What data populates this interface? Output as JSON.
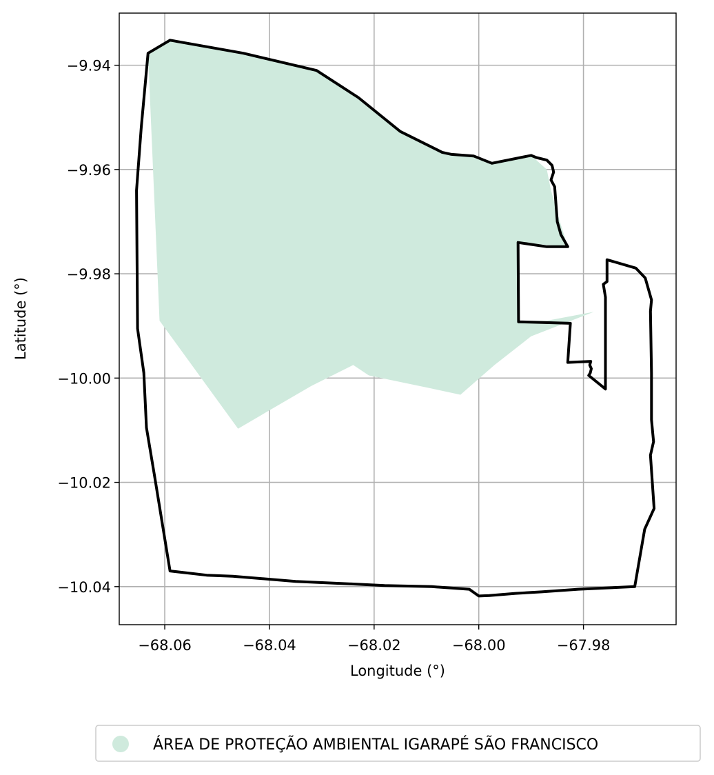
{
  "chart_data": {
    "type": "map",
    "xlabel": "Longitude (°)",
    "ylabel": "Latitude (°)",
    "xlim": [
      -68.0687,
      -67.9623
    ],
    "ylim": [
      -10.0473,
      -9.93
    ],
    "grid": true,
    "x_ticks": [
      {
        "value": -68.06,
        "label": "−68.06"
      },
      {
        "value": -68.04,
        "label": "−68.04"
      },
      {
        "value": -68.02,
        "label": "−68.02"
      },
      {
        "value": -68.0,
        "label": "−68.00"
      },
      {
        "value": -67.98,
        "label": "−67.98"
      }
    ],
    "y_ticks": [
      {
        "value": -9.94,
        "label": "−9.94"
      },
      {
        "value": -9.96,
        "label": "−9.96"
      },
      {
        "value": -9.98,
        "label": "−9.98"
      },
      {
        "value": -10.0,
        "label": "−10.00"
      },
      {
        "value": -10.02,
        "label": "−10.02"
      },
      {
        "value": -10.04,
        "label": "−10.04"
      }
    ],
    "legend": {
      "placement": "bottom-center",
      "entries": [
        {
          "label": "ÁREA DE PROTEÇÃO AMBIENTAL IGARAPÉ SÃO FRANCISCO",
          "color": "#cfeadd"
        }
      ]
    },
    "protected_area": {
      "color": "#cfeadd",
      "coordinates": [
        [
          -68.0632,
          -9.9377
        ],
        [
          -68.059,
          -9.9352
        ],
        [
          -68.045,
          -9.9377
        ],
        [
          -68.031,
          -9.941
        ],
        [
          -68.023,
          -9.9462
        ],
        [
          -68.015,
          -9.9527
        ],
        [
          -68.007,
          -9.9567
        ],
        [
          -68.0052,
          -9.9571
        ],
        [
          -68.001,
          -9.9574
        ],
        [
          -67.9975,
          -9.9588
        ],
        [
          -67.99,
          -9.9573
        ],
        [
          -67.987,
          -9.96
        ],
        [
          -67.9862,
          -9.964
        ],
        [
          -67.9845,
          -9.97
        ],
        [
          -67.983,
          -9.9748
        ],
        [
          -67.9925,
          -9.974
        ],
        [
          -67.9925,
          -9.989
        ],
        [
          -67.987,
          -9.989
        ],
        [
          -67.978,
          -9.9873
        ],
        [
          -67.99,
          -9.992
        ],
        [
          -67.997,
          -9.9975
        ],
        [
          -68.0035,
          -10.0032
        ],
        [
          -68.009,
          -10.002
        ],
        [
          -68.021,
          -9.9995
        ],
        [
          -68.024,
          -9.9975
        ],
        [
          -68.032,
          -10.0015
        ],
        [
          -68.046,
          -10.0097
        ],
        [
          -68.061,
          -9.989
        ],
        [
          -68.0632,
          -9.9377
        ]
      ]
    },
    "boundary": {
      "color": "#000000",
      "coordinates": [
        [
          -68.0632,
          -9.9377
        ],
        [
          -68.059,
          -9.9352
        ],
        [
          -68.045,
          -9.9377
        ],
        [
          -68.031,
          -9.941
        ],
        [
          -68.023,
          -9.9462
        ],
        [
          -68.015,
          -9.9527
        ],
        [
          -68.007,
          -9.9567
        ],
        [
          -68.0052,
          -9.9571
        ],
        [
          -68.001,
          -9.9574
        ],
        [
          -67.9975,
          -9.9588
        ],
        [
          -67.99,
          -9.9573
        ],
        [
          -67.989,
          -9.9577
        ],
        [
          -67.987,
          -9.9582
        ],
        [
          -67.986,
          -9.9592
        ],
        [
          -67.9857,
          -9.9605
        ],
        [
          -67.9862,
          -9.962
        ],
        [
          -67.9855,
          -9.9633
        ],
        [
          -67.985,
          -9.97
        ],
        [
          -67.9843,
          -9.9725
        ],
        [
          -67.983,
          -9.9748
        ],
        [
          -67.987,
          -9.9748
        ],
        [
          -67.9925,
          -9.974
        ],
        [
          -67.9924,
          -9.9892
        ],
        [
          -67.9825,
          -9.9895
        ],
        [
          -67.983,
          -9.997
        ],
        [
          -67.9786,
          -9.9968
        ],
        [
          -67.9788,
          -9.9975
        ],
        [
          -67.9785,
          -9.9982
        ],
        [
          -67.9787,
          -9.999
        ],
        [
          -67.979,
          -9.9995
        ],
        [
          -67.9758,
          -10.0021
        ],
        [
          -67.9758,
          -9.9845
        ],
        [
          -67.9762,
          -9.982
        ],
        [
          -67.9755,
          -9.9815
        ],
        [
          -67.9755,
          -9.9773
        ],
        [
          -67.97,
          -9.9789
        ],
        [
          -67.9682,
          -9.9808
        ],
        [
          -67.967,
          -9.985
        ],
        [
          -67.9672,
          -9.9872
        ],
        [
          -67.967,
          -9.999
        ],
        [
          -67.967,
          -10.008
        ],
        [
          -67.9666,
          -10.0122
        ],
        [
          -67.9672,
          -10.0148
        ],
        [
          -67.9666,
          -10.0235
        ],
        [
          -67.9665,
          -10.025
        ],
        [
          -67.9683,
          -10.029
        ],
        [
          -67.9702,
          -10.04
        ],
        [
          -67.981,
          -10.0405
        ],
        [
          -67.988,
          -10.041
        ],
        [
          -67.993,
          -10.0413
        ],
        [
          -67.998,
          -10.0417
        ],
        [
          -68.0,
          -10.0418
        ],
        [
          -68.0018,
          -10.0405
        ],
        [
          -68.009,
          -10.04
        ],
        [
          -68.018,
          -10.0398
        ],
        [
          -68.024,
          -10.0395
        ],
        [
          -68.035,
          -10.039
        ],
        [
          -68.047,
          -10.038
        ],
        [
          -68.052,
          -10.0378
        ],
        [
          -68.059,
          -10.037
        ],
        [
          -68.062,
          -10.0185
        ],
        [
          -68.0635,
          -10.0095
        ],
        [
          -68.064,
          -9.999
        ],
        [
          -68.0652,
          -9.9905
        ],
        [
          -68.0654,
          -9.964
        ],
        [
          -68.0645,
          -9.952
        ],
        [
          -68.0632,
          -9.9377
        ]
      ]
    }
  }
}
